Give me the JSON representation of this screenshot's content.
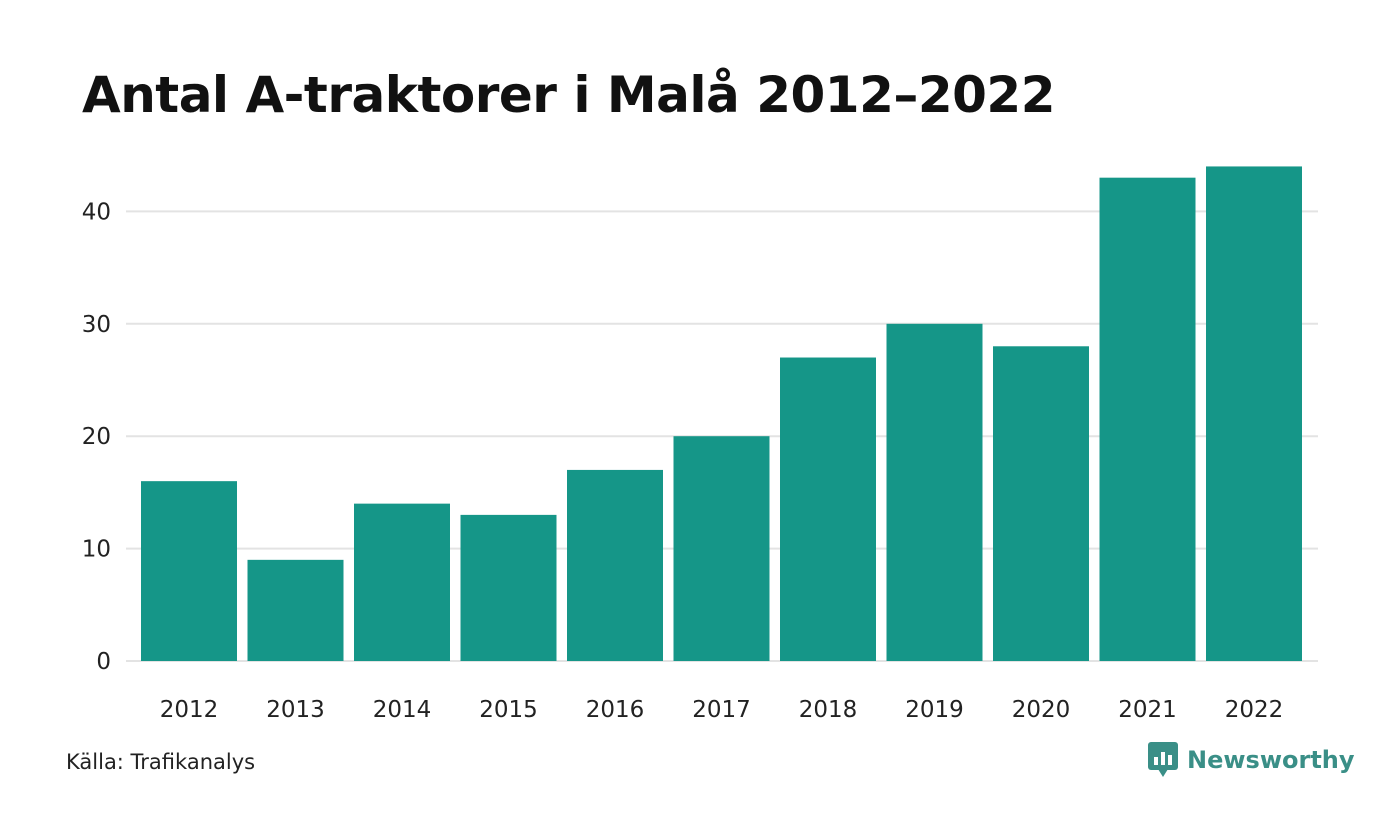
{
  "title": "Antal A-traktorer i Malå 2012–2022",
  "source": "Källa: Trafikanalys",
  "brand": "Newsworthy",
  "colors": {
    "bar": "#159688",
    "grid": "#e3e3e3",
    "brand": "#3a8f87"
  },
  "chart_data": {
    "type": "bar",
    "categories": [
      "2012",
      "2013",
      "2014",
      "2015",
      "2016",
      "2017",
      "2018",
      "2019",
      "2020",
      "2021",
      "2022"
    ],
    "values": [
      16,
      9,
      14,
      13,
      17,
      20,
      27,
      30,
      28,
      43,
      44
    ],
    "yticks": [
      0,
      10,
      20,
      30,
      40
    ],
    "ylim": [
      0,
      44
    ],
    "grid": true,
    "xlabel": "",
    "ylabel": ""
  }
}
